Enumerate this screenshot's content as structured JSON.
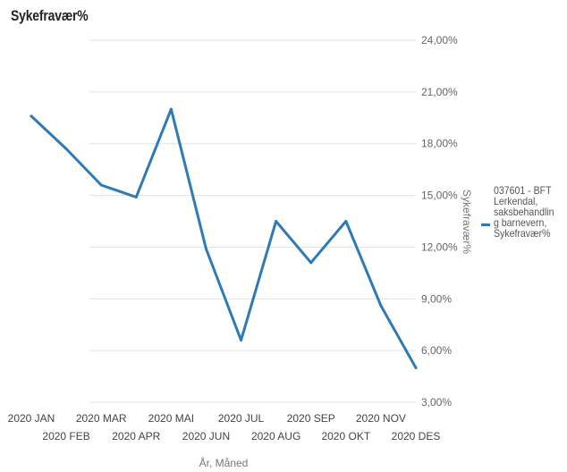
{
  "chart_data": {
    "type": "line",
    "title": "Sykefravær%",
    "xlabel": "År, Måned",
    "ylabel": "Sykefravær%",
    "categories": [
      "2020 JAN",
      "2020 FEB",
      "2020 MAR",
      "2020 APR",
      "2020 MAI",
      "2020 JUN",
      "2020 JUL",
      "2020 AUG",
      "2020 SEP",
      "2020 OKT",
      "2020 NOV",
      "2020 DES"
    ],
    "series": [
      {
        "name": "037601 - BFT Lerkendal, saksbehandling barnevern, Sykefravær%",
        "values": [
          19.6,
          17.7,
          15.6,
          14.9,
          20.0,
          11.9,
          6.6,
          13.5,
          11.1,
          13.5,
          8.6,
          5.0
        ]
      }
    ],
    "yticks": [
      "24,00%",
      "21,00%",
      "18,00%",
      "15,00%",
      "12,00%",
      "9,00%",
      "6,00%",
      "3,00%"
    ],
    "ylim": [
      3,
      24
    ],
    "ytick_step": 3,
    "y_axis_side": "right",
    "grid": true,
    "legend_position": "right",
    "colors": {
      "series": "#2f7ab5",
      "grid": "#e3e3e3",
      "axis_text": "#666666",
      "title": "#222222"
    }
  }
}
